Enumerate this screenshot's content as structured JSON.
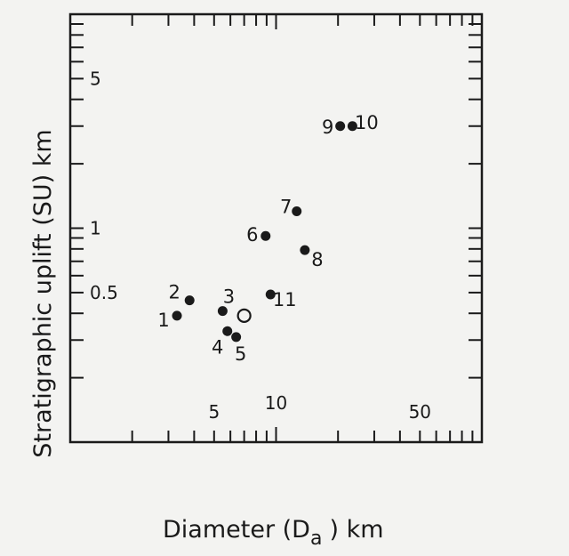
{
  "chart_data": {
    "type": "scatter",
    "title": "",
    "xlabel": "Diameter (D",
    "xlabel_sub": "a",
    "xlabel_unit": ") km",
    "ylabel": "Stratigraphic uplift (SU) km",
    "xscale": "log",
    "yscale": "log",
    "xlim": [
      1,
      100
    ],
    "ylim": [
      0.1,
      10
    ],
    "grid": false,
    "x_tick_labels": [
      {
        "value": 5,
        "label": "5"
      },
      {
        "value": 10,
        "label": "10"
      },
      {
        "value": 50,
        "label": "50"
      }
    ],
    "y_tick_labels": [
      {
        "value": 5,
        "label": "5"
      },
      {
        "value": 1,
        "label": "1"
      },
      {
        "value": 0.5,
        "label": "0.5"
      }
    ],
    "colors": {
      "ink": "#1a1a1a",
      "background": "#f3f3f1"
    },
    "points": [
      {
        "label": "1",
        "x": 3.3,
        "y": 0.39,
        "marker": "filled"
      },
      {
        "label": "2",
        "x": 3.8,
        "y": 0.46,
        "marker": "filled"
      },
      {
        "label": "3",
        "x": 5.5,
        "y": 0.41,
        "marker": "filled"
      },
      {
        "label": "4",
        "x": 5.8,
        "y": 0.33,
        "marker": "filled"
      },
      {
        "label": "5",
        "x": 6.4,
        "y": 0.31,
        "marker": "filled"
      },
      {
        "label": "6",
        "x": 8.9,
        "y": 0.92,
        "marker": "filled"
      },
      {
        "label": "7",
        "x": 12.6,
        "y": 1.2,
        "marker": "filled"
      },
      {
        "label": "8",
        "x": 13.8,
        "y": 0.79,
        "marker": "filled"
      },
      {
        "label": "9",
        "x": 20.5,
        "y": 3.0,
        "marker": "filled"
      },
      {
        "label": "10",
        "x": 23.5,
        "y": 3.0,
        "marker": "filled"
      },
      {
        "label": "11",
        "x": 9.4,
        "y": 0.49,
        "marker": "filled"
      },
      {
        "label": "",
        "x": 7.0,
        "y": 0.39,
        "marker": "open"
      }
    ]
  }
}
